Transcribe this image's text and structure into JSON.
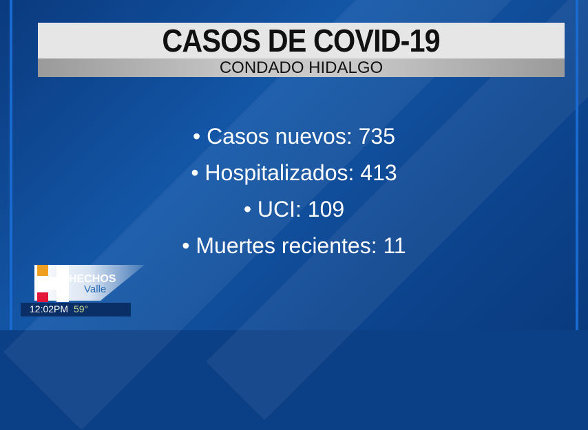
{
  "header": {
    "title": "CASOS DE COVID-19",
    "subtitle": "CONDADO HIDALGO"
  },
  "stats": [
    "• Casos nuevos: 735",
    "• Hospitalizados: 413",
    "• UCI: 109",
    "• Muertes recientes: 11"
  ],
  "branding": {
    "logo_line1": "HECHOS",
    "logo_line2": "Valle",
    "logo_colors": {
      "orange": "#f0a020",
      "red": "#e3163a"
    }
  },
  "ticker": {
    "time": "12:02PM",
    "temperature": "59°"
  }
}
